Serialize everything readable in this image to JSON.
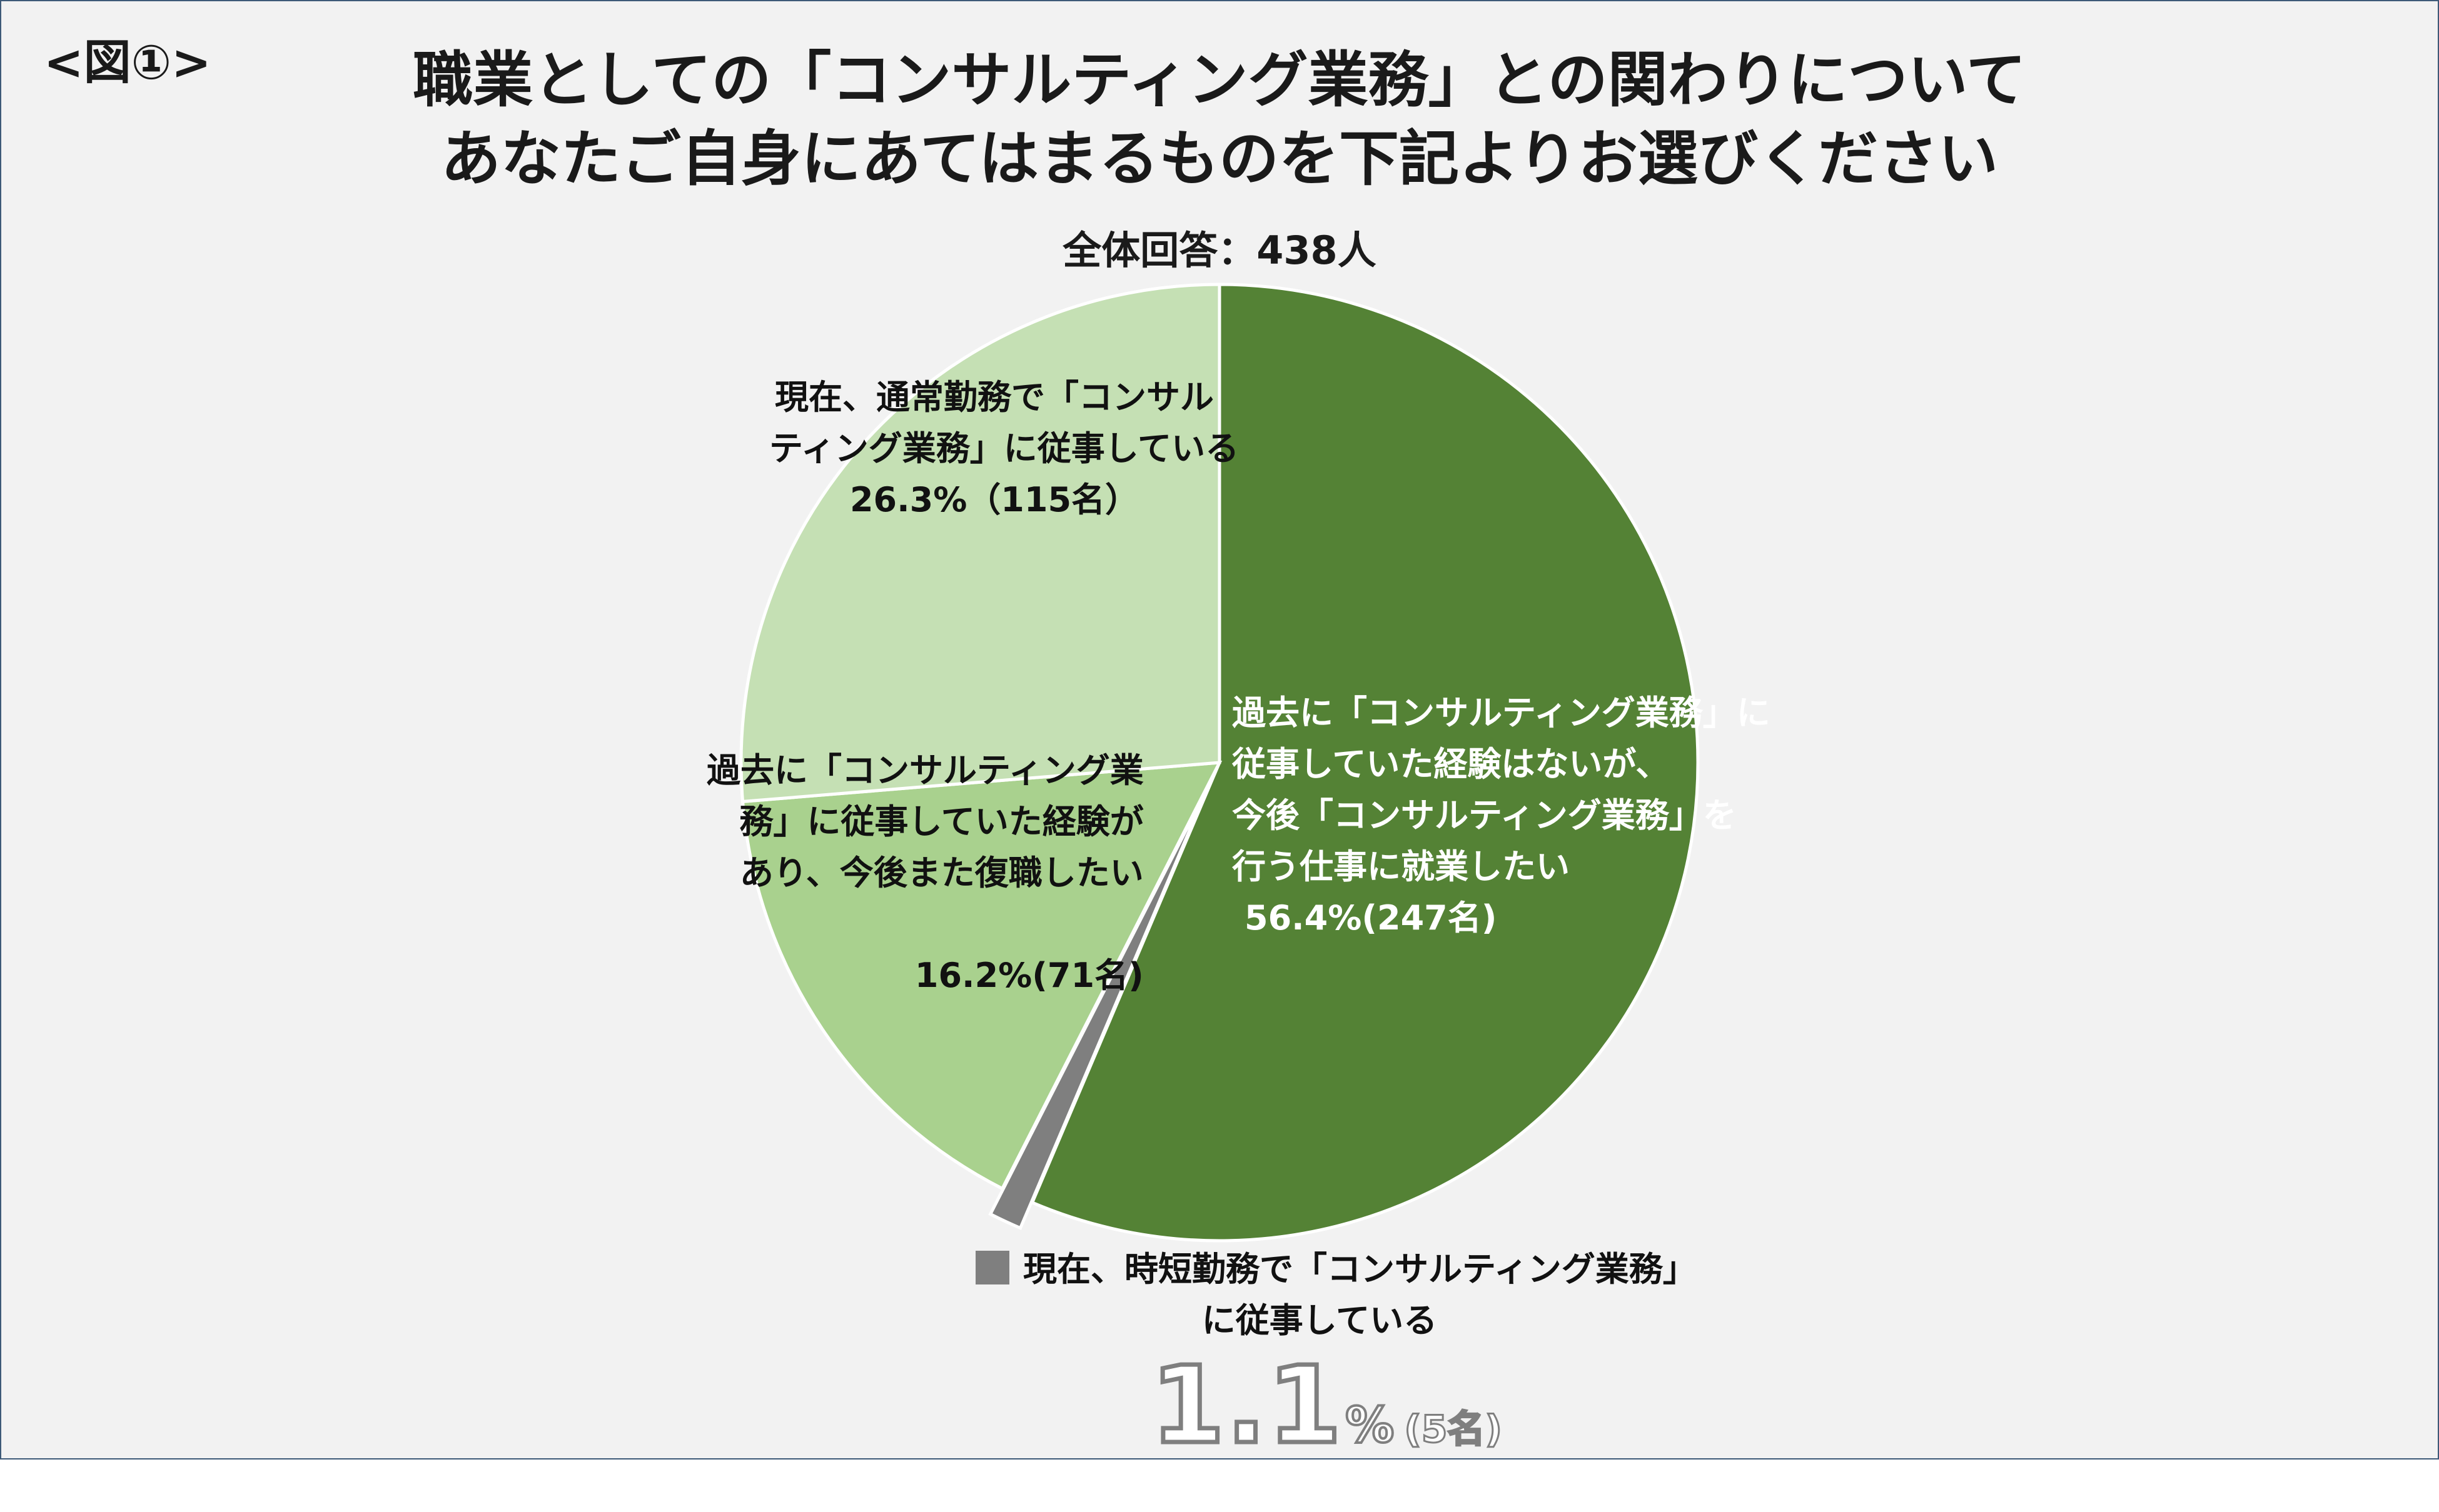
{
  "figure_label": "<図①>",
  "title": {
    "line1": "職業としての「コンサルティング業務」との関わりについて",
    "line2": "あなたご自身にあてはまるものを下記よりお選びください"
  },
  "total_label": "全体回答：438人",
  "chart_data": {
    "type": "pie",
    "total_respondents": 438,
    "slices": [
      {
        "label_lines": [
          "過去に「コンサルティング業務」に",
          "従事していた経験はないが、",
          "今後「コンサルティング業務」を",
          "行う仕事に就業したい"
        ],
        "percent_label": "56.4%(247名)",
        "percent": 56.4,
        "count": 247,
        "color": "#548235"
      },
      {
        "label_lines": [
          "現在、時短勤務で「コンサルティング業務」",
          "に従事している"
        ],
        "percent_big": "1.1",
        "percent_sign": "%",
        "count_label": "(5名)",
        "percent": 1.1,
        "count": 5,
        "color": "#7f7f7f",
        "exploded": true
      },
      {
        "label_lines": [
          "過去に「コンサルティング業",
          "務」に従事していた経験が",
          "あり、今後また復職したい"
        ],
        "percent_label": "16.2%(71名)",
        "percent": 16.2,
        "count": 71,
        "color": "#a9d18e"
      },
      {
        "label_lines": [
          "現在、通常勤務で「コンサル",
          "ティング業務」に従事している"
        ],
        "percent_label": "26.3%（115名）",
        "percent": 26.3,
        "count": 115,
        "color": "#c5e0b4"
      }
    ]
  }
}
